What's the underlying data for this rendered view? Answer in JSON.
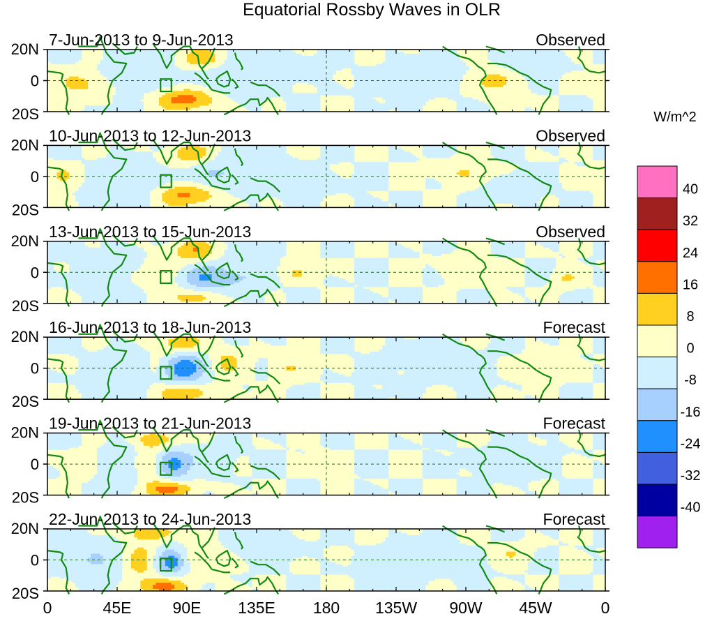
{
  "chart_data": {
    "type": "heatmap",
    "title": "Equatorial Rossby Waves in OLR",
    "variable": "OLR anomaly",
    "units": "W/m^2",
    "lat_range": [
      -20,
      20
    ],
    "lon_range": [
      0,
      360
    ],
    "y_tick_labels": [
      "20N",
      "0",
      "20S"
    ],
    "x_tick_labels": [
      "0",
      "45E",
      "90E",
      "135E",
      "180",
      "135W",
      "90W",
      "45W",
      "0"
    ],
    "x_tick_lons": [
      0,
      45,
      90,
      135,
      180,
      225,
      270,
      315,
      360
    ],
    "colorbar": {
      "label": "W/m^2",
      "levels": [
        40,
        32,
        24,
        16,
        8,
        0,
        -8,
        -16,
        -24,
        -32,
        -40
      ],
      "level_labels": [
        "40",
        "32",
        "24",
        "16",
        "8",
        "0",
        "-8",
        "-16",
        "-24",
        "-32",
        "-40"
      ],
      "colors": [
        "#ff70c0",
        "#a02020",
        "#ff0000",
        "#ff7000",
        "#ffd020",
        "#ffffc8",
        "#d0f0ff",
        "#a8d0ff",
        "#2090ff",
        "#4060e0",
        "#0000a0",
        "#a020f0"
      ]
    },
    "panels": [
      {
        "period": "7-Jun-2013 to 9-Jun-2013",
        "kind": "Observed",
        "features": [
          {
            "lon": 22,
            "lat": -2,
            "value": 10,
            "sx": 14,
            "sy": 6
          },
          {
            "lon": 58,
            "lat": 4,
            "value": -6,
            "sx": 16,
            "sy": 10
          },
          {
            "lon": 90,
            "lat": -12,
            "value": 20,
            "sx": 14,
            "sy": 5
          },
          {
            "lon": 100,
            "lat": 14,
            "value": 14,
            "sx": 10,
            "sy": 5
          },
          {
            "lon": 118,
            "lat": 2,
            "value": -8,
            "sx": 16,
            "sy": 9
          },
          {
            "lon": 160,
            "lat": 8,
            "value": -5,
            "sx": 14,
            "sy": 6
          },
          {
            "lon": 250,
            "lat": 2,
            "value": -6,
            "sx": 18,
            "sy": 7
          },
          {
            "lon": 285,
            "lat": 0,
            "value": 11,
            "sx": 12,
            "sy": 6
          },
          {
            "lon": 310,
            "lat": 12,
            "value": -8,
            "sx": 12,
            "sy": 6
          }
        ]
      },
      {
        "period": "10-Jun-2013 to 12-Jun-2013",
        "kind": "Observed",
        "features": [
          {
            "lon": 10,
            "lat": 0,
            "value": 9,
            "sx": 8,
            "sy": 5
          },
          {
            "lon": 50,
            "lat": -6,
            "value": -7,
            "sx": 16,
            "sy": 10
          },
          {
            "lon": 90,
            "lat": -12,
            "value": 18,
            "sx": 14,
            "sy": 5
          },
          {
            "lon": 92,
            "lat": 14,
            "value": 14,
            "sx": 10,
            "sy": 5
          },
          {
            "lon": 112,
            "lat": 2,
            "value": -9,
            "sx": 16,
            "sy": 8
          },
          {
            "lon": 160,
            "lat": -4,
            "value": -5,
            "sx": 16,
            "sy": 6
          },
          {
            "lon": 270,
            "lat": 2,
            "value": 9,
            "sx": 12,
            "sy": 5
          },
          {
            "lon": 300,
            "lat": -6,
            "value": -7,
            "sx": 12,
            "sy": 6
          }
        ]
      },
      {
        "period": "13-Jun-2013 to 15-Jun-2013",
        "kind": "Observed",
        "features": [
          {
            "lon": 40,
            "lat": 4,
            "value": -5,
            "sx": 16,
            "sy": 8
          },
          {
            "lon": 75,
            "lat": 0,
            "value": 8,
            "sx": 8,
            "sy": 8
          },
          {
            "lon": 95,
            "lat": 14,
            "value": 15,
            "sx": 10,
            "sy": 5
          },
          {
            "lon": 100,
            "lat": -4,
            "value": -16,
            "sx": 10,
            "sy": 6
          },
          {
            "lon": 96,
            "lat": -16,
            "value": 14,
            "sx": 10,
            "sy": 4
          },
          {
            "lon": 125,
            "lat": -2,
            "value": -9,
            "sx": 12,
            "sy": 8
          },
          {
            "lon": 160,
            "lat": 0,
            "value": 8,
            "sx": 8,
            "sy": 4
          },
          {
            "lon": 270,
            "lat": 2,
            "value": 8,
            "sx": 10,
            "sy": 5
          },
          {
            "lon": 335,
            "lat": -4,
            "value": 8,
            "sx": 6,
            "sy": 4
          }
        ]
      },
      {
        "period": "16-Jun-2013 to 18-Jun-2013",
        "kind": "Forecast",
        "features": [
          {
            "lon": 50,
            "lat": -2,
            "value": -6,
            "sx": 14,
            "sy": 9
          },
          {
            "lon": 72,
            "lat": 0,
            "value": 8,
            "sx": 6,
            "sy": 6
          },
          {
            "lon": 85,
            "lat": 16,
            "value": 14,
            "sx": 10,
            "sy": 5
          },
          {
            "lon": 88,
            "lat": 0,
            "value": -22,
            "sx": 10,
            "sy": 7
          },
          {
            "lon": 90,
            "lat": -16,
            "value": 16,
            "sx": 12,
            "sy": 4
          },
          {
            "lon": 115,
            "lat": 4,
            "value": 10,
            "sx": 8,
            "sy": 6
          },
          {
            "lon": 155,
            "lat": 0,
            "value": 8,
            "sx": 8,
            "sy": 5
          },
          {
            "lon": 250,
            "lat": 4,
            "value": -5,
            "sx": 20,
            "sy": 8
          },
          {
            "lon": 320,
            "lat": 0,
            "value": 9,
            "sx": 8,
            "sy": 5
          }
        ]
      },
      {
        "period": "19-Jun-2013 to 21-Jun-2013",
        "kind": "Forecast",
        "features": [
          {
            "lon": 25,
            "lat": 0,
            "value": 9,
            "sx": 7,
            "sy": 5
          },
          {
            "lon": 50,
            "lat": -2,
            "value": -8,
            "sx": 12,
            "sy": 9
          },
          {
            "lon": 65,
            "lat": 0,
            "value": 12,
            "sx": 6,
            "sy": 8
          },
          {
            "lon": 72,
            "lat": 16,
            "value": 13,
            "sx": 10,
            "sy": 4
          },
          {
            "lon": 82,
            "lat": 0,
            "value": -18,
            "sx": 8,
            "sy": 7
          },
          {
            "lon": 78,
            "lat": -16,
            "value": 18,
            "sx": 12,
            "sy": 4
          },
          {
            "lon": 108,
            "lat": 4,
            "value": -6,
            "sx": 10,
            "sy": 6
          },
          {
            "lon": 180,
            "lat": 0,
            "value": 7,
            "sx": 6,
            "sy": 4
          },
          {
            "lon": 300,
            "lat": 2,
            "value": -6,
            "sx": 14,
            "sy": 6
          }
        ]
      },
      {
        "period": "22-Jun-2013 to 24-Jun-2013",
        "kind": "Forecast",
        "features": [
          {
            "lon": 30,
            "lat": 0,
            "value": -7,
            "sx": 12,
            "sy": 9
          },
          {
            "lon": 60,
            "lat": 0,
            "value": 12,
            "sx": 6,
            "sy": 8
          },
          {
            "lon": 70,
            "lat": 18,
            "value": 14,
            "sx": 12,
            "sy": 4
          },
          {
            "lon": 80,
            "lat": -1,
            "value": -20,
            "sx": 6,
            "sy": 6
          },
          {
            "lon": 75,
            "lat": -17,
            "value": 18,
            "sx": 12,
            "sy": 4
          },
          {
            "lon": 100,
            "lat": 2,
            "value": 8,
            "sx": 8,
            "sy": 6
          },
          {
            "lon": 140,
            "lat": 8,
            "value": -6,
            "sx": 14,
            "sy": 6
          },
          {
            "lon": 240,
            "lat": -2,
            "value": -5,
            "sx": 18,
            "sy": 7
          },
          {
            "lon": 300,
            "lat": 4,
            "value": 7,
            "sx": 8,
            "sy": 4
          }
        ]
      }
    ]
  }
}
